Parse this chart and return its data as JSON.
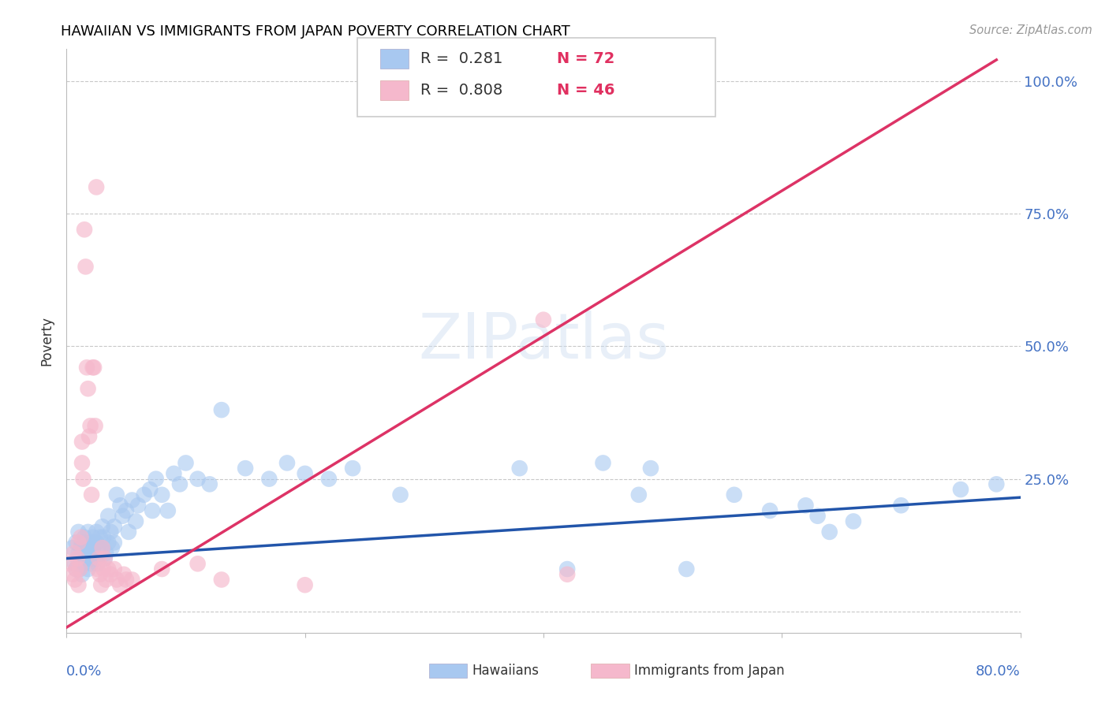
{
  "title": "HAWAIIAN VS IMMIGRANTS FROM JAPAN POVERTY CORRELATION CHART",
  "source": "Source: ZipAtlas.com",
  "ylabel": "Poverty",
  "xlim": [
    0.0,
    0.8
  ],
  "ylim": [
    -0.04,
    1.06
  ],
  "background_color": "#ffffff",
  "grid_color": "#c8c8c8",
  "hawaiian_color": "#a8c8f0",
  "japan_color": "#f5b8cc",
  "hawaiian_line_color": "#2255aa",
  "japan_line_color": "#dd3366",
  "ytick_positions": [
    0.0,
    0.25,
    0.5,
    0.75,
    1.0
  ],
  "ytick_labels": [
    "",
    "25.0%",
    "50.0%",
    "75.0%",
    "100.0%"
  ],
  "xtick_positions": [
    0.0,
    0.2,
    0.4,
    0.6,
    0.8
  ],
  "hawaii_line_x": [
    0.0,
    0.8
  ],
  "hawaii_line_y": [
    0.1,
    0.215
  ],
  "japan_line_x": [
    0.0,
    0.78
  ],
  "japan_line_y": [
    -0.03,
    1.04
  ],
  "legend_box_color": "#f0f0f0",
  "legend_border_color": "#c0c0c0",
  "hawaiian_scatter": [
    [
      0.005,
      0.12
    ],
    [
      0.007,
      0.09
    ],
    [
      0.008,
      0.08
    ],
    [
      0.008,
      0.13
    ],
    [
      0.01,
      0.1
    ],
    [
      0.01,
      0.11
    ],
    [
      0.01,
      0.15
    ],
    [
      0.011,
      0.08
    ],
    [
      0.012,
      0.1
    ],
    [
      0.012,
      0.12
    ],
    [
      0.013,
      0.07
    ],
    [
      0.013,
      0.13
    ],
    [
      0.014,
      0.09
    ],
    [
      0.015,
      0.11
    ],
    [
      0.015,
      0.14
    ],
    [
      0.016,
      0.1
    ],
    [
      0.017,
      0.12
    ],
    [
      0.018,
      0.08
    ],
    [
      0.018,
      0.15
    ],
    [
      0.019,
      0.11
    ],
    [
      0.02,
      0.1
    ],
    [
      0.02,
      0.13
    ],
    [
      0.021,
      0.09
    ],
    [
      0.022,
      0.12
    ],
    [
      0.022,
      0.14
    ],
    [
      0.023,
      0.11
    ],
    [
      0.024,
      0.1
    ],
    [
      0.025,
      0.13
    ],
    [
      0.025,
      0.15
    ],
    [
      0.026,
      0.09
    ],
    [
      0.027,
      0.12
    ],
    [
      0.028,
      0.14
    ],
    [
      0.03,
      0.16
    ],
    [
      0.03,
      0.12
    ],
    [
      0.031,
      0.14
    ],
    [
      0.032,
      0.1
    ],
    [
      0.033,
      0.11
    ],
    [
      0.035,
      0.13
    ],
    [
      0.035,
      0.18
    ],
    [
      0.037,
      0.15
    ],
    [
      0.038,
      0.12
    ],
    [
      0.04,
      0.16
    ],
    [
      0.04,
      0.13
    ],
    [
      0.042,
      0.22
    ],
    [
      0.045,
      0.2
    ],
    [
      0.047,
      0.18
    ],
    [
      0.05,
      0.19
    ],
    [
      0.052,
      0.15
    ],
    [
      0.055,
      0.21
    ],
    [
      0.058,
      0.17
    ],
    [
      0.06,
      0.2
    ],
    [
      0.065,
      0.22
    ],
    [
      0.07,
      0.23
    ],
    [
      0.072,
      0.19
    ],
    [
      0.075,
      0.25
    ],
    [
      0.08,
      0.22
    ],
    [
      0.085,
      0.19
    ],
    [
      0.09,
      0.26
    ],
    [
      0.095,
      0.24
    ],
    [
      0.1,
      0.28
    ],
    [
      0.11,
      0.25
    ],
    [
      0.12,
      0.24
    ],
    [
      0.13,
      0.38
    ],
    [
      0.15,
      0.27
    ],
    [
      0.17,
      0.25
    ],
    [
      0.185,
      0.28
    ],
    [
      0.2,
      0.26
    ],
    [
      0.22,
      0.25
    ],
    [
      0.24,
      0.27
    ],
    [
      0.28,
      0.22
    ],
    [
      0.38,
      0.27
    ],
    [
      0.42,
      0.08
    ],
    [
      0.45,
      0.28
    ],
    [
      0.48,
      0.22
    ],
    [
      0.49,
      0.27
    ],
    [
      0.52,
      0.08
    ],
    [
      0.56,
      0.22
    ],
    [
      0.59,
      0.19
    ],
    [
      0.62,
      0.2
    ],
    [
      0.63,
      0.18
    ],
    [
      0.64,
      0.15
    ],
    [
      0.66,
      0.17
    ],
    [
      0.7,
      0.2
    ],
    [
      0.75,
      0.23
    ],
    [
      0.78,
      0.24
    ]
  ],
  "japan_scatter": [
    [
      0.003,
      0.09
    ],
    [
      0.005,
      0.07
    ],
    [
      0.006,
      0.11
    ],
    [
      0.007,
      0.06
    ],
    [
      0.008,
      0.08
    ],
    [
      0.009,
      0.1
    ],
    [
      0.01,
      0.05
    ],
    [
      0.01,
      0.13
    ],
    [
      0.011,
      0.08
    ],
    [
      0.012,
      0.14
    ],
    [
      0.013,
      0.28
    ],
    [
      0.013,
      0.32
    ],
    [
      0.014,
      0.25
    ],
    [
      0.015,
      0.72
    ],
    [
      0.016,
      0.65
    ],
    [
      0.017,
      0.46
    ],
    [
      0.018,
      0.42
    ],
    [
      0.019,
      0.33
    ],
    [
      0.02,
      0.35
    ],
    [
      0.021,
      0.22
    ],
    [
      0.022,
      0.46
    ],
    [
      0.023,
      0.46
    ],
    [
      0.024,
      0.35
    ],
    [
      0.025,
      0.8
    ],
    [
      0.026,
      0.08
    ],
    [
      0.027,
      0.1
    ],
    [
      0.028,
      0.07
    ],
    [
      0.029,
      0.05
    ],
    [
      0.03,
      0.12
    ],
    [
      0.031,
      0.08
    ],
    [
      0.032,
      0.1
    ],
    [
      0.033,
      0.06
    ],
    [
      0.035,
      0.08
    ],
    [
      0.037,
      0.07
    ],
    [
      0.04,
      0.08
    ],
    [
      0.042,
      0.06
    ],
    [
      0.045,
      0.05
    ],
    [
      0.048,
      0.07
    ],
    [
      0.05,
      0.06
    ],
    [
      0.055,
      0.06
    ],
    [
      0.08,
      0.08
    ],
    [
      0.11,
      0.09
    ],
    [
      0.13,
      0.06
    ],
    [
      0.2,
      0.05
    ],
    [
      0.4,
      0.55
    ],
    [
      0.42,
      0.07
    ]
  ]
}
